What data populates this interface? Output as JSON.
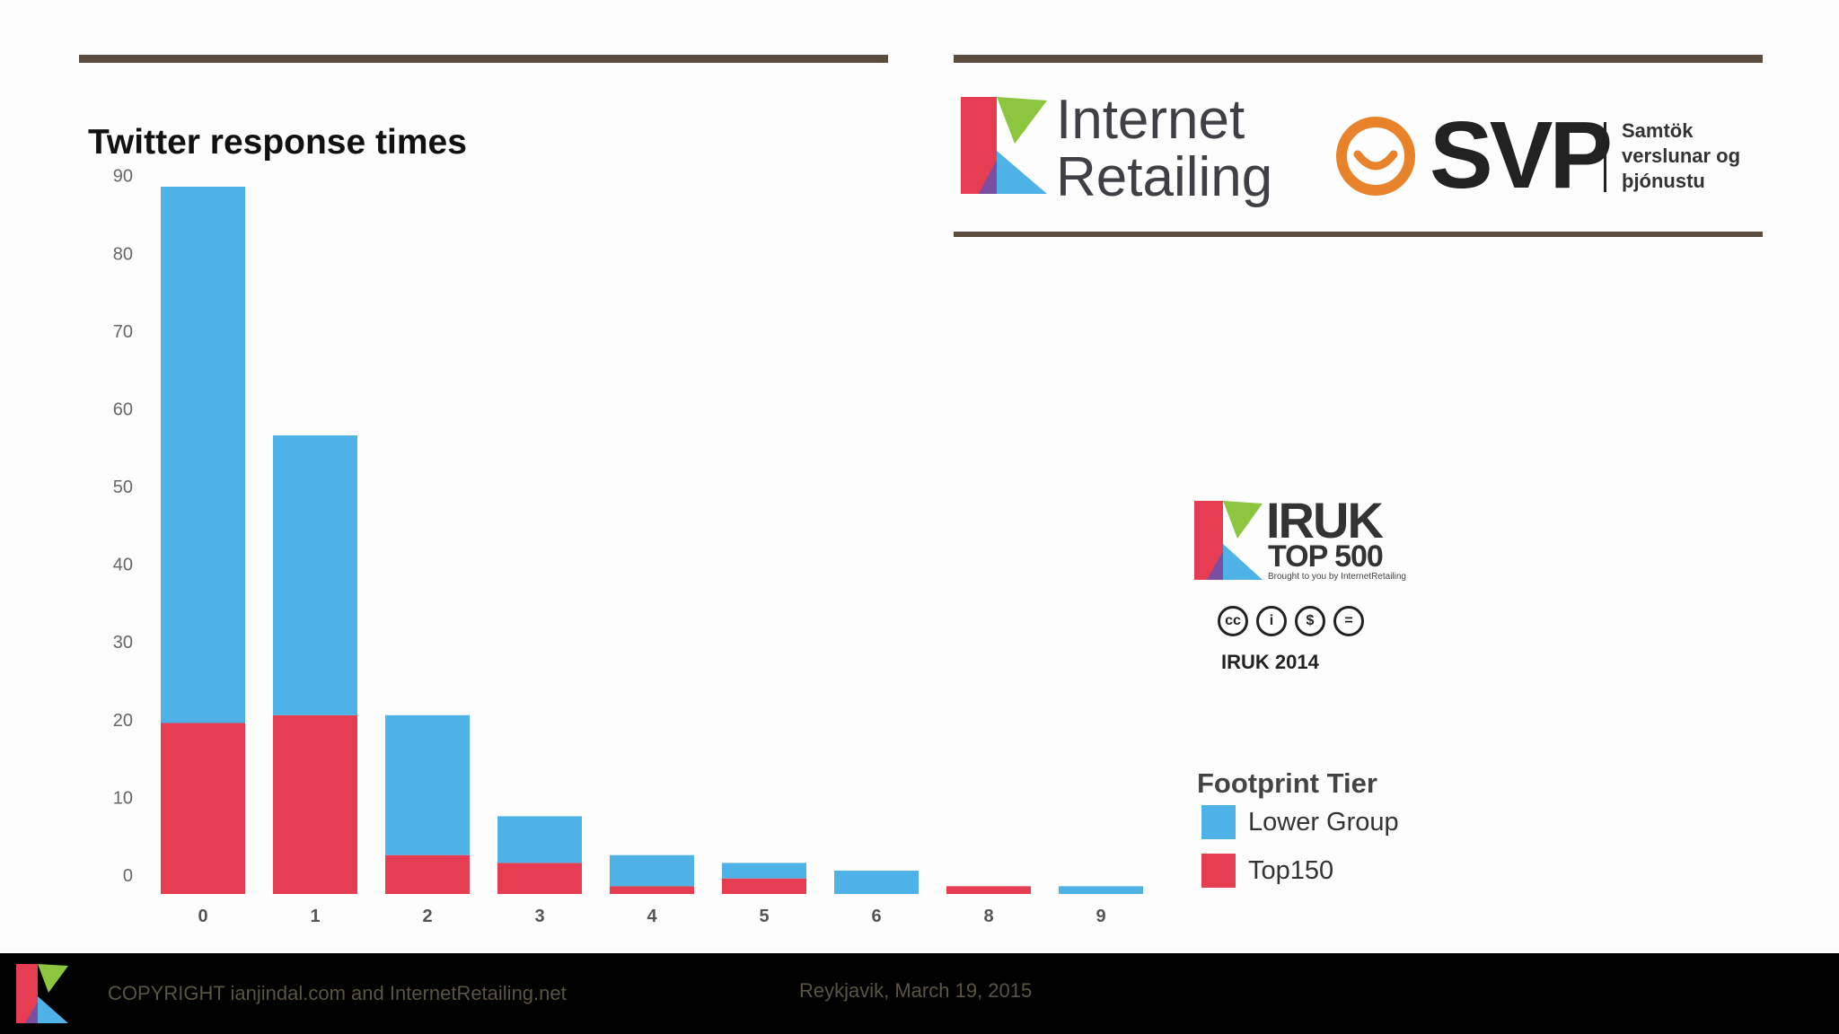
{
  "slide": {
    "title": "Twitter response times",
    "logos": {
      "internet_retailing": [
        "Internet",
        "Retailing"
      ],
      "svp": {
        "mark": "SVP",
        "subtitle": [
          "Samtök",
          "verslunar og",
          "þjónustu"
        ]
      },
      "iruk": {
        "name": "IRUK",
        "subtitle": "TOP 500",
        "tagline": "Brought to you by InternetRetailing",
        "license_icons": [
          "cc-icon",
          "by-icon",
          "nc-icon",
          "nd-icon"
        ],
        "license_labels": [
          "cc",
          "i",
          "$",
          "="
        ],
        "year_label": "IRUK 2014"
      }
    },
    "footer": {
      "copyright": "COPYRIGHT ianjindal.com and InternetRetailing.net",
      "date": "Reykjavik, March 19, 2015"
    },
    "colors": {
      "lower_group": "#4fb2e6",
      "top150": "#e63d52",
      "rule": "#5a4d40"
    }
  },
  "chart_data": {
    "type": "bar",
    "stacked": true,
    "title": "Twitter response times",
    "categories": [
      "0",
      "1",
      "2",
      "3",
      "4",
      "5",
      "6",
      "8",
      "9"
    ],
    "series": [
      {
        "name": "Top150",
        "color": "#e63d52",
        "values": [
          22,
          23,
          5,
          4,
          1,
          2,
          0,
          1,
          0
        ]
      },
      {
        "name": "Lower Group",
        "color": "#4fb2e6",
        "values": [
          69,
          36,
          18,
          6,
          4,
          2,
          3,
          0,
          1
        ]
      }
    ],
    "legend_title": "Footprint Tier",
    "legend": [
      "Lower Group",
      "Top150"
    ],
    "yticks": [
      0,
      10,
      20,
      30,
      40,
      50,
      60,
      70,
      80,
      90
    ],
    "ylim": [
      0,
      91
    ],
    "xlabel": "",
    "ylabel": "",
    "grid": false,
    "legend_position": "right"
  }
}
